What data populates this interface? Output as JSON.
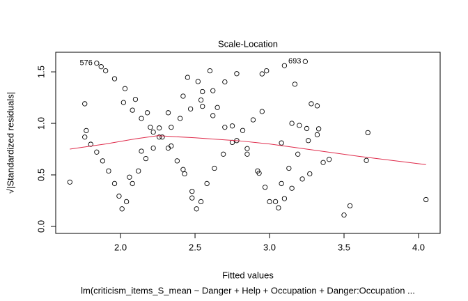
{
  "chart_data": {
    "type": "scatter",
    "title": "Scale-Location",
    "xlabel": "Fitted values",
    "ylabel": "√|Standardized residuals|",
    "subtitle": "lm(criticism_items_S_mean ~ Danger + Help + Occupation + Danger:Occupation  ...",
    "xlim": [
      1.565,
      4.145
    ],
    "ylim": [
      -0.068,
      1.69
    ],
    "xticks": [
      {
        "value": 2,
        "label": "2.0"
      },
      2.5,
      {
        "value": 3,
        "label": "3.0"
      },
      3.5,
      {
        "value": 4,
        "label": "4.0"
      }
    ],
    "yticks": [
      {
        "value": 0,
        "label": "0.0"
      },
      0.5,
      {
        "value": 1,
        "label": "1.0"
      },
      1.5
    ],
    "series": [
      {
        "color": "#000000",
        "x": [
          1.76,
          1.8,
          1.84,
          1.88,
          1.92,
          1.96,
          1.99,
          2.01,
          2.04,
          2.08,
          2.12,
          2.17,
          2.22,
          2.28,
          2.34,
          2.4,
          2.47,
          2.54,
          2.62,
          2.7,
          2.78,
          2.02,
          2.08,
          2.14,
          2.2,
          2.26,
          2.32,
          2.38,
          2.43,
          2.48,
          2.51,
          2.54,
          2.58,
          2.63,
          2.69,
          2.75,
          2.82,
          2.89,
          2.95,
          2.55,
          2.62,
          2.7,
          2.78,
          2.85,
          2.92,
          2.97,
          3.0,
          3.04,
          3.08,
          3.13,
          3.19,
          3.26,
          3.33,
          1.84,
          1.9,
          1.96,
          2.03,
          2.1,
          2.18,
          2.26,
          2.34,
          2.42,
          2.48,
          2.06,
          2.14,
          2.22,
          2.32,
          2.42,
          2.52,
          2.6,
          2.45,
          2.55,
          2.65,
          2.75,
          2.85,
          2.93,
          1.66,
          1.77,
          1.76,
          3.15,
          3.2,
          3.25,
          3.32,
          3.36,
          3.4,
          3.5,
          3.54,
          3.65,
          3.66,
          4.05,
          3.1,
          3.24,
          3.17,
          3.28,
          3.32,
          3.08,
          3.1,
          3.15,
          3.22,
          3.27,
          2.98,
          2.95,
          3.06,
          1.87
        ],
        "values": [
          0.867,
          0.797,
          0.721,
          0.636,
          0.538,
          0.416,
          0.294,
          0.17,
          0.24,
          0.416,
          0.538,
          0.658,
          0.76,
          0.867,
          0.962,
          1.048,
          1.14,
          1.226,
          1.317,
          1.402,
          1.482,
          1.202,
          1.128,
          1.048,
          0.962,
          0.867,
          0.76,
          0.636,
          0.51,
          0.34,
          0.17,
          0.24,
          0.416,
          0.564,
          0.701,
          0.815,
          0.931,
          1.034,
          1.115,
          1.165,
          1.075,
          0.962,
          0.833,
          0.701,
          0.538,
          0.38,
          0.24,
          0.24,
          0.416,
          0.564,
          0.701,
          0.833,
          0.947,
          1.584,
          1.51,
          1.433,
          1.337,
          1.233,
          1.103,
          0.955,
          0.78,
          0.552,
          0.276,
          0.478,
          0.73,
          0.915,
          1.103,
          1.264,
          1.406,
          1.51,
          1.446,
          1.308,
          1.154,
          0.975,
          0.755,
          0.516,
          0.43,
          0.93,
          1.19,
          1.0,
          0.98,
          0.95,
          0.89,
          0.62,
          0.65,
          0.11,
          0.2,
          0.64,
          0.91,
          0.26,
          1.56,
          1.6,
          1.38,
          1.19,
          1.17,
          0.81,
          0.27,
          0.37,
          0.46,
          0.51,
          1.51,
          1.48,
          0.18,
          1.55
        ]
      },
      {
        "color": "#df2a4a",
        "line": true,
        "x": [
          1.66,
          1.9,
          2.1,
          2.25,
          2.5,
          2.8,
          3.0,
          3.3,
          3.6,
          4.05
        ],
        "values": [
          0.75,
          0.8,
          0.85,
          0.88,
          0.86,
          0.83,
          0.8,
          0.74,
          0.68,
          0.6
        ]
      }
    ],
    "annotations": [
      {
        "text": "576",
        "x": 1.84,
        "y": 1.584
      },
      {
        "text": "693",
        "x": 3.24,
        "y": 1.6
      }
    ]
  }
}
